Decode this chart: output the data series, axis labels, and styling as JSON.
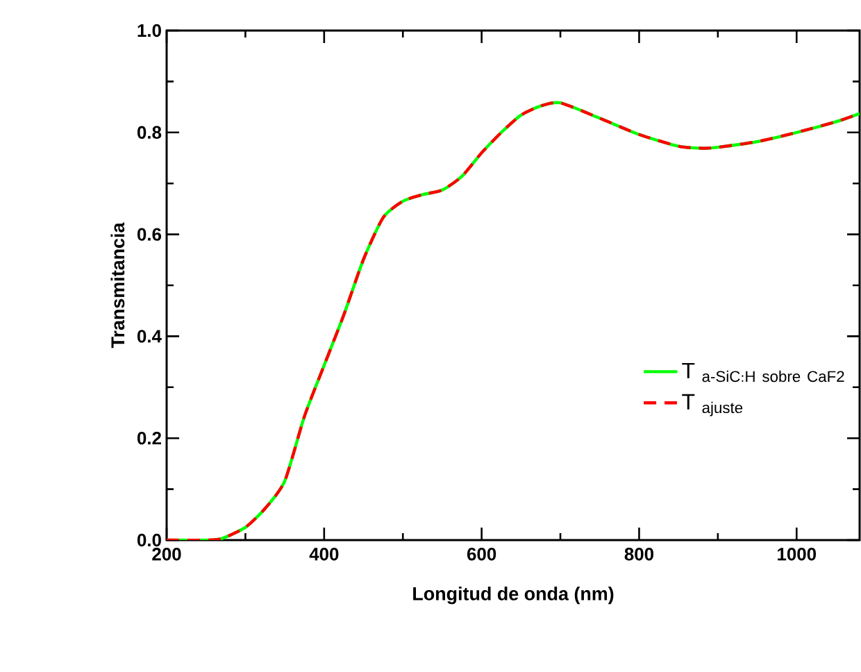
{
  "chart_data": {
    "type": "line",
    "xlabel": "Longitud de onda (nm)",
    "ylabel": "Transmitancia",
    "x": [
      200,
      250,
      270,
      300,
      325,
      350,
      375,
      400,
      425,
      450,
      475,
      500,
      525,
      550,
      575,
      600,
      625,
      650,
      675,
      700,
      750,
      800,
      850,
      880,
      900,
      950,
      1000,
      1050,
      1080
    ],
    "series": [
      {
        "name": "\\mathrm{T}\\;_{\\mathrm{a\\text{-}SiC{:}H\\ sobre\\ CaF2}}",
        "color": "#00ff00",
        "line_style": "solid",
        "values": [
          0,
          0,
          0.003,
          0.025,
          0.062,
          0.116,
          0.243,
          0.343,
          0.442,
          0.551,
          0.633,
          0.665,
          0.678,
          0.687,
          0.714,
          0.76,
          0.8,
          0.834,
          0.852,
          0.858,
          0.828,
          0.796,
          0.773,
          0.769,
          0.771,
          0.782,
          0.8,
          0.821,
          0.837
        ]
      },
      {
        "name": "\\mathrm{T}\\;_{\\mathrm{ajuste}}",
        "color": "#ff0000",
        "line_style": "dashed",
        "values": [
          0,
          0,
          0.003,
          0.025,
          0.062,
          0.116,
          0.243,
          0.343,
          0.442,
          0.551,
          0.633,
          0.665,
          0.678,
          0.687,
          0.714,
          0.76,
          0.8,
          0.834,
          0.852,
          0.858,
          0.828,
          0.796,
          0.773,
          0.769,
          0.771,
          0.782,
          0.8,
          0.821,
          0.837
        ]
      }
    ],
    "xlim": [
      200,
      1080
    ],
    "xticks": [
      200,
      400,
      600,
      800,
      1000
    ],
    "ylim": [
      0,
      1.0
    ],
    "yticks": [
      {
        "value": 0,
        "label": "0.0"
      },
      {
        "value": 0.2,
        "label": "0.2"
      },
      {
        "value": 0.4,
        "label": "0.4"
      },
      {
        "value": 0.6,
        "label": "0.6"
      },
      {
        "value": 0.8,
        "label": "0.8"
      },
      {
        "value": 1.0,
        "label": "1.0"
      }
    ],
    "grid": false,
    "legend": "right",
    "marker": "none"
  }
}
